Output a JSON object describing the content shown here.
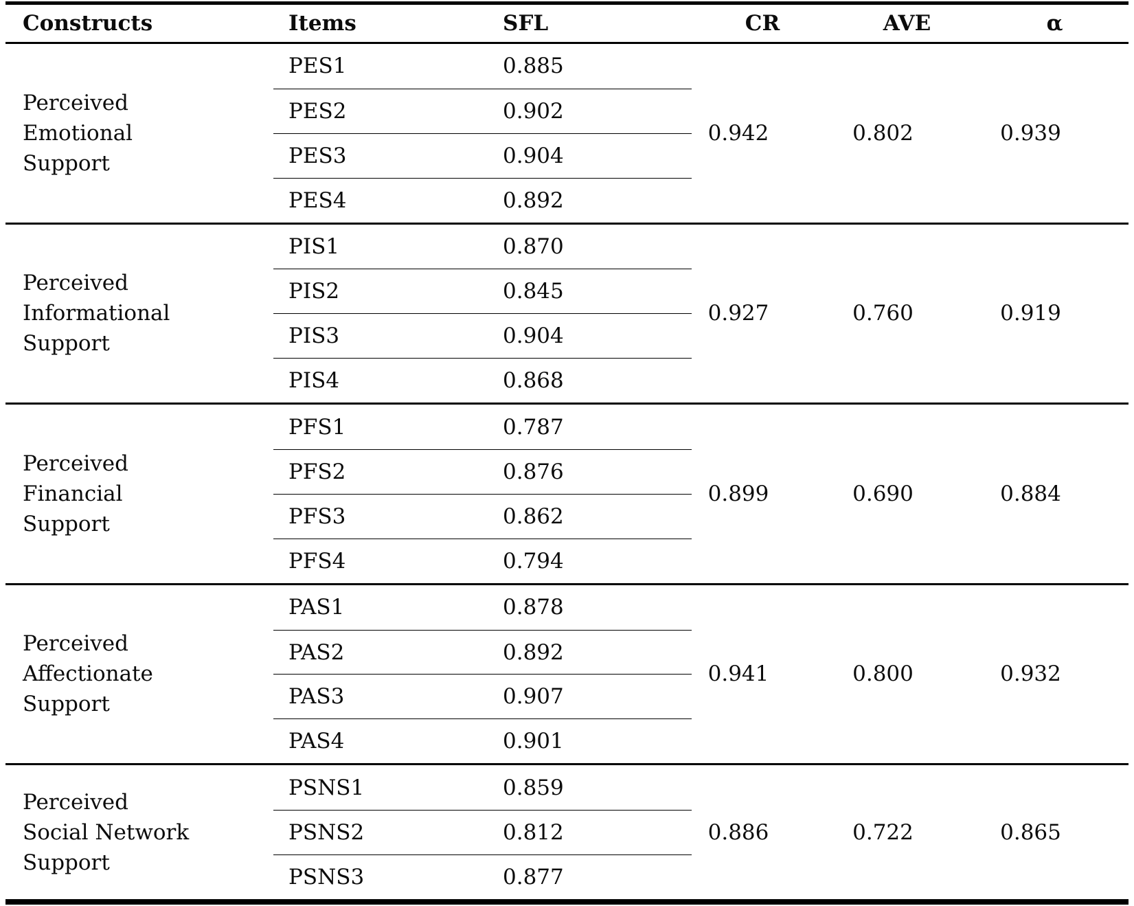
{
  "table": {
    "headers": {
      "constructs": "Constructs",
      "items": "Items",
      "sfl": "SFL",
      "cr": "CR",
      "ave": "AVE",
      "alpha": "α"
    },
    "sections": [
      {
        "construct": "Perceived Emotional Support",
        "construct_lines": [
          "Perceived",
          "Emotional",
          "Support"
        ],
        "items": [
          {
            "id": "PES1",
            "sfl": "0.885"
          },
          {
            "id": "PES2",
            "sfl": "0.902"
          },
          {
            "id": "PES3",
            "sfl": "0.904"
          },
          {
            "id": "PES4",
            "sfl": "0.892"
          }
        ],
        "cr": "0.942",
        "ave": "0.802",
        "alpha": "0.939"
      },
      {
        "construct": "Perceived Informational Support",
        "construct_lines": [
          "Perceived",
          "Informational",
          "Support"
        ],
        "items": [
          {
            "id": "PIS1",
            "sfl": "0.870"
          },
          {
            "id": "PIS2",
            "sfl": "0.845"
          },
          {
            "id": "PIS3",
            "sfl": "0.904"
          },
          {
            "id": "PIS4",
            "sfl": "0.868"
          }
        ],
        "cr": "0.927",
        "ave": "0.760",
        "alpha": "0.919"
      },
      {
        "construct": "Perceived Financial Support",
        "construct_lines": [
          "Perceived",
          "Financial",
          "Support"
        ],
        "items": [
          {
            "id": "PFS1",
            "sfl": "0.787"
          },
          {
            "id": "PFS2",
            "sfl": "0.876"
          },
          {
            "id": "PFS3",
            "sfl": "0.862"
          },
          {
            "id": "PFS4",
            "sfl": "0.794"
          }
        ],
        "cr": "0.899",
        "ave": "0.690",
        "alpha": "0.884"
      },
      {
        "construct": "Perceived Affectionate Support",
        "construct_lines": [
          "Perceived",
          "Affectionate",
          "Support"
        ],
        "items": [
          {
            "id": "PAS1",
            "sfl": "0.878"
          },
          {
            "id": "PAS2",
            "sfl": "0.892"
          },
          {
            "id": "PAS3",
            "sfl": "0.907"
          },
          {
            "id": "PAS4",
            "sfl": "0.901"
          }
        ],
        "cr": "0.941",
        "ave": "0.800",
        "alpha": "0.932"
      },
      {
        "construct": "Perceived Social Network Support",
        "construct_lines": [
          "Perceived",
          "Social Network",
          "Support"
        ],
        "items": [
          {
            "id": "PSNS1",
            "sfl": "0.859"
          },
          {
            "id": "PSNS2",
            "sfl": "0.812"
          },
          {
            "id": "PSNS3",
            "sfl": "0.877"
          }
        ],
        "cr": "0.886",
        "ave": "0.722",
        "alpha": "0.865"
      }
    ]
  }
}
